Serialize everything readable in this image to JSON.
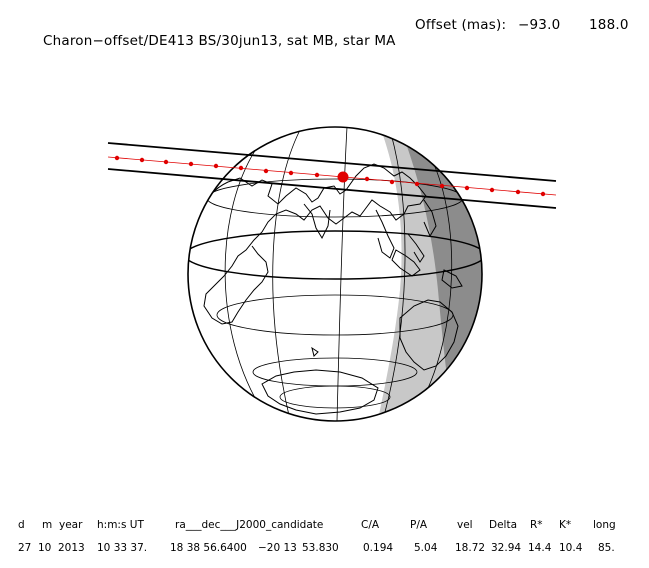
{
  "header": {
    "title": "Charon−offset/DE413 BS/30jun13, sat MB, star MA",
    "offset_label": "Offset (mas):",
    "offset_ra": "−93.0",
    "offset_dec": "188.0"
  },
  "table": {
    "headers": [
      "d",
      "m",
      "year",
      "h:m:s UT",
      "ra___dec___J2000_candidate",
      "C/A",
      "P/A",
      "vel",
      "Delta",
      "R*",
      "K*",
      "long"
    ],
    "values": [
      "27",
      "10",
      "2013",
      "10 33 37.",
      "18 38 56.6400",
      "−20 13",
      "53.830",
      "0.194",
      "5.04",
      "18.72",
      "32.94",
      "14.4",
      "10.4",
      "85."
    ]
  },
  "colors": {
    "night": "#8c8c8c",
    "twilight": "#c8c8c8",
    "track": "#e00000",
    "lines": "#000000"
  }
}
